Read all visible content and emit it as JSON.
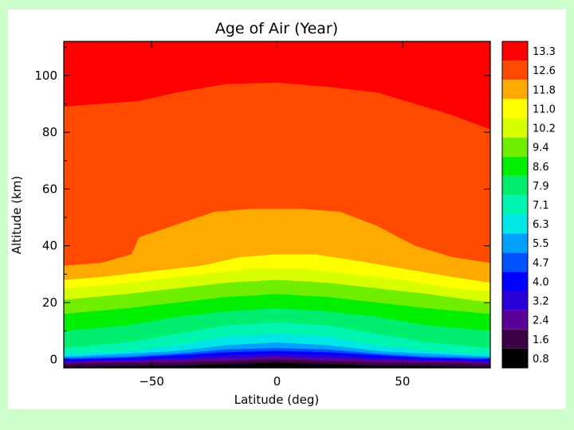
{
  "chart_data": {
    "type": "contour",
    "title": "Age of Air  (Year)",
    "xlabel": "Latitude  (deg)",
    "ylabel": "Altitude  (km)",
    "xlim": [
      -85,
      85
    ],
    "ylim": [
      -3,
      112
    ],
    "xticks": [
      -50,
      0,
      50
    ],
    "yticks": [
      0,
      20,
      40,
      60,
      80,
      100
    ],
    "colorbar": {
      "levels": [
        "0.8",
        "1.6",
        "2.4",
        "3.2",
        "4.0",
        "4.7",
        "5.5",
        "6.3",
        "7.1",
        "7.9",
        "8.6",
        "9.4",
        "10.2",
        "11.0",
        "11.8",
        "12.6",
        "13.3"
      ],
      "colors": [
        "#000000",
        "#3c0046",
        "#5a0096",
        "#2a00d8",
        "#0000ff",
        "#0050ff",
        "#00a0ff",
        "#00e6e6",
        "#00f5b0",
        "#00ee70",
        "#00ee00",
        "#70ee00",
        "#d8ff00",
        "#ffff00",
        "#ffaa00",
        "#ff4a00",
        "#ff0000"
      ]
    },
    "contour_lines": [
      {
        "level": "12.6",
        "x": [
          -85,
          -70,
          -55,
          -40,
          -20,
          0,
          20,
          40,
          55,
          70,
          85
        ],
        "y": [
          89,
          90,
          91,
          94,
          97,
          97.5,
          96,
          94,
          90,
          86,
          81
        ]
      },
      {
        "level": "11.8",
        "x": [
          -85,
          -70,
          -58,
          -55,
          -45,
          -35,
          -25,
          -10,
          0,
          10,
          25,
          40,
          55,
          70,
          85
        ],
        "y": [
          33,
          34,
          37,
          43,
          46,
          49,
          52,
          53,
          53,
          53,
          52,
          47,
          40,
          36,
          34
        ]
      },
      {
        "level": "11.0",
        "x": [
          -85,
          -70,
          -50,
          -30,
          -15,
          0,
          15,
          30,
          50,
          70,
          85
        ],
        "y": [
          28,
          29,
          31,
          33,
          36,
          37,
          37,
          35,
          32,
          29,
          27
        ]
      },
      {
        "level": "10.2",
        "x": [
          -85,
          -70,
          -50,
          -30,
          -10,
          0,
          10,
          30,
          50,
          70,
          85
        ],
        "y": [
          25,
          26,
          28,
          30,
          32,
          32,
          32,
          30,
          28,
          25,
          24
        ]
      },
      {
        "level": "9.4",
        "x": [
          -85,
          -60,
          -40,
          -20,
          0,
          20,
          40,
          60,
          85
        ],
        "y": [
          21,
          23,
          25,
          27,
          28,
          27,
          25,
          23,
          20
        ]
      },
      {
        "level": "8.6",
        "x": [
          -85,
          -60,
          -40,
          -20,
          0,
          20,
          40,
          60,
          85
        ],
        "y": [
          16,
          18,
          20,
          22,
          23,
          22,
          20,
          18,
          16
        ]
      },
      {
        "level": "7.9",
        "x": [
          -85,
          -60,
          -40,
          -20,
          0,
          20,
          40,
          60,
          85
        ],
        "y": [
          10,
          12,
          15,
          17,
          18,
          17,
          15,
          12,
          10
        ]
      },
      {
        "level": "7.1",
        "x": [
          -85,
          -60,
          -40,
          -20,
          0,
          20,
          40,
          60,
          85
        ],
        "y": [
          4,
          6,
          9,
          12,
          13,
          12,
          9,
          6,
          4
        ]
      },
      {
        "level": "6.3",
        "x": [
          -85,
          -60,
          -40,
          -20,
          0,
          20,
          40,
          60,
          85
        ],
        "y": [
          2,
          3,
          5,
          8,
          9,
          8,
          5,
          3,
          2
        ]
      },
      {
        "level": "5.5",
        "x": [
          -85,
          -60,
          -40,
          -20,
          0,
          20,
          40,
          60,
          85
        ],
        "y": [
          1,
          2,
          3,
          5,
          6,
          5,
          3,
          2,
          1
        ]
      },
      {
        "level": "4.7",
        "x": [
          -85,
          -60,
          -40,
          -20,
          0,
          20,
          40,
          60,
          85
        ],
        "y": [
          0.5,
          1,
          2,
          3.5,
          4,
          3.5,
          2,
          1,
          0.5
        ]
      },
      {
        "level": "4.0",
        "x": [
          -85,
          -60,
          -40,
          -20,
          0,
          20,
          40,
          60,
          85
        ],
        "y": [
          0,
          0.5,
          1.5,
          2.5,
          3,
          2.5,
          1.5,
          0.5,
          0
        ]
      },
      {
        "level": "3.2",
        "x": [
          -85,
          -60,
          -40,
          -20,
          0,
          20,
          40,
          60,
          85
        ],
        "y": [
          -0.5,
          0,
          0.5,
          1.5,
          2,
          1.5,
          0.5,
          0,
          -0.5
        ]
      },
      {
        "level": "2.4",
        "x": [
          -85,
          -60,
          -40,
          -20,
          0,
          20,
          40,
          60,
          85
        ],
        "y": [
          -1,
          -0.5,
          0,
          0.5,
          1,
          0.5,
          0,
          -0.5,
          -1
        ]
      },
      {
        "level": "1.6",
        "x": [
          -85,
          -60,
          -40,
          -20,
          0,
          20,
          40,
          60,
          85
        ],
        "y": [
          -1.5,
          -1.2,
          -1,
          -0.5,
          0,
          -0.5,
          -1,
          -1.2,
          -1.5
        ]
      }
    ]
  }
}
